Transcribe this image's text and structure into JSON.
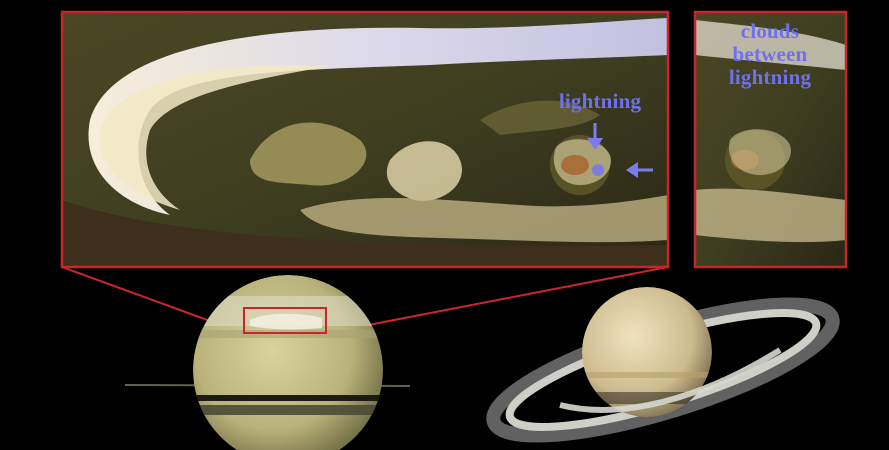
{
  "labels": {
    "lightning": "lightning",
    "clouds_line1": "clouds",
    "clouds_line2": "between",
    "clouds_line3": "lightning"
  },
  "colors": {
    "frame": "#c8262a",
    "label": "#6f6ff2",
    "background": "#000000"
  }
}
